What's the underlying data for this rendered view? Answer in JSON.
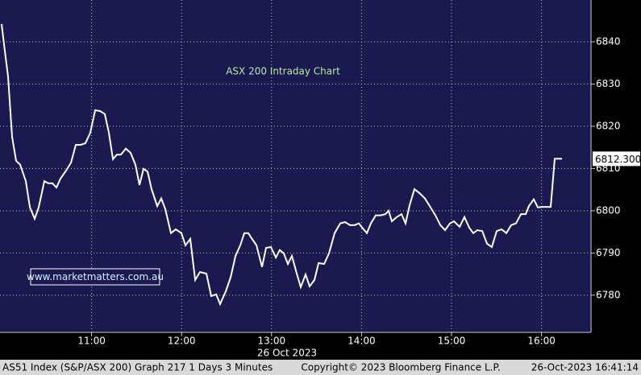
{
  "chart_data": {
    "type": "line",
    "annotation": "ASX 200 Intraday Chart",
    "watermark": "www.marketmatters.com.au",
    "x_label": "26 Oct 2023",
    "x": [
      10.0,
      10.027,
      10.072,
      10.116,
      10.161,
      10.206,
      10.269,
      10.314,
      10.367,
      10.412,
      10.475,
      10.52,
      10.565,
      10.609,
      10.654,
      10.717,
      10.771,
      10.824,
      10.878,
      10.932,
      10.986,
      11.039,
      11.093,
      11.147,
      11.192,
      11.237,
      11.281,
      11.326,
      11.38,
      11.434,
      11.487,
      11.532,
      11.577,
      11.622,
      11.667,
      11.729,
      11.774,
      11.819,
      11.882,
      11.935,
      11.998,
      12.043,
      12.097,
      12.151,
      12.204,
      12.276,
      12.33,
      12.384,
      12.428,
      12.491,
      12.545,
      12.599,
      12.652,
      12.697,
      12.742,
      12.778,
      12.832,
      12.894,
      12.939,
      12.993,
      13.047,
      13.091,
      13.136,
      13.181,
      13.226,
      13.28,
      13.324,
      13.378,
      13.423,
      13.477,
      13.522,
      13.584,
      13.638,
      13.701,
      13.763,
      13.817,
      13.871,
      13.925,
      13.97,
      14.014,
      14.059,
      14.104,
      14.158,
      14.211,
      14.265,
      14.301,
      14.337,
      14.391,
      14.444,
      14.489,
      14.534,
      14.588,
      14.642,
      14.704,
      14.758,
      14.821,
      14.875,
      14.928,
      14.982,
      15.027,
      15.09,
      15.143,
      15.197,
      15.242,
      15.287,
      15.341,
      15.394,
      15.448,
      15.502,
      15.556,
      15.609,
      15.663,
      15.717,
      15.771,
      15.824,
      15.86,
      15.914,
      15.959,
      16.004,
      16.057,
      16.102,
      16.147,
      16.228
    ],
    "values": [
      6844.2,
      6839.4,
      6831.8,
      6817.5,
      6811.8,
      6810.9,
      6807.0,
      6800.8,
      6798.1,
      6800.8,
      6807.0,
      6806.5,
      6806.5,
      6805.5,
      6807.6,
      6809.5,
      6811.4,
      6815.6,
      6815.6,
      6816.0,
      6818.5,
      6823.8,
      6823.6,
      6822.9,
      6818.5,
      6812.2,
      6813.3,
      6813.3,
      6814.7,
      6813.7,
      6810.9,
      6806.1,
      6809.9,
      6809.3,
      6805.1,
      6801.1,
      6802.9,
      6800.4,
      6794.7,
      6795.6,
      6794.7,
      6791.8,
      6793.3,
      6783.6,
      6785.5,
      6785.1,
      6779.8,
      6780.2,
      6777.9,
      6780.9,
      6784.2,
      6789.3,
      6791.8,
      6794.7,
      6794.7,
      6793.5,
      6791.8,
      6786.7,
      6791.2,
      6791.4,
      6788.9,
      6790.7,
      6789.9,
      6787.4,
      6789.3,
      6785.1,
      6781.9,
      6784.9,
      6782.1,
      6783.6,
      6787.6,
      6787.4,
      6789.9,
      6794.7,
      6797.0,
      6797.3,
      6796.6,
      6796.6,
      6797.0,
      6795.8,
      6794.7,
      6797.0,
      6798.9,
      6798.9,
      6799.2,
      6800.0,
      6797.5,
      6798.5,
      6799.2,
      6797.0,
      6801.3,
      6805.1,
      6804.2,
      6802.9,
      6801.1,
      6798.9,
      6796.6,
      6795.4,
      6797.0,
      6797.5,
      6796.2,
      6798.5,
      6796.0,
      6794.7,
      6795.4,
      6795.2,
      6792.2,
      6791.4,
      6795.2,
      6795.6,
      6794.7,
      6796.6,
      6797.0,
      6799.2,
      6799.2,
      6801.1,
      6802.7,
      6800.8,
      6800.9,
      6800.9,
      6800.9,
      6812.3,
      6812.3
    ],
    "color": "#ffffff",
    "last_value": {
      "value": 6812.3,
      "label": "6812.300"
    },
    "xlim": [
      9.982,
      16.55
    ],
    "ylim": [
      6771.2,
      6849.9
    ],
    "xticks": [
      {
        "value": 11,
        "label": "11:00"
      },
      {
        "value": 12,
        "label": "12:00"
      },
      {
        "value": 13,
        "label": "13:00"
      },
      {
        "value": 14,
        "label": "14:00"
      },
      {
        "value": 15,
        "label": "15:00"
      },
      {
        "value": 16,
        "label": "16:00"
      }
    ],
    "yticks": [
      6780,
      6790,
      6800,
      6810,
      6820,
      6830,
      6840
    ],
    "grid": true
  },
  "footer": {
    "left": "AS51 Index (S&P/ASX 200) Graph 217 1 Days 3 Minutes",
    "center": "Copyright© 2023 Bloomberg Finance L.P.",
    "right": "26-Oct-2023 16:41:14"
  }
}
